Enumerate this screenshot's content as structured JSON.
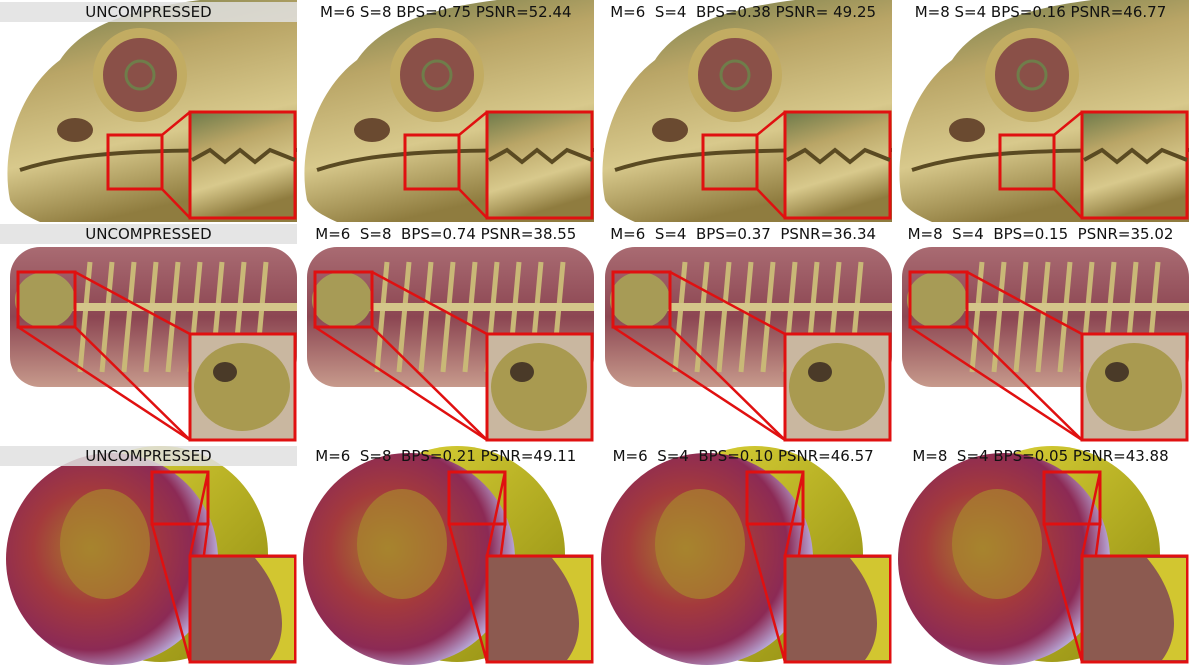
{
  "rows": [
    {
      "panels": [
        {
          "label": "UNCOMPRESSED"
        },
        {
          "label": "M=6 S=8 BPS=0.75 PSNR=52.44"
        },
        {
          "label": "M=6  S=4  BPS=0.38 PSNR= 49.25"
        },
        {
          "label": "M=8 S=4 BPS=0.16 PSNR=46.77"
        }
      ]
    },
    {
      "panels": [
        {
          "label": "UNCOMPRESSED"
        },
        {
          "label": "M=6  S=8  BPS=0.74 PSNR=38.55"
        },
        {
          "label": "M=6  S=4  BPS=0.37  PSNR=36.34"
        },
        {
          "label": "M=8  S=4  BPS=0.15  PSNR=35.02"
        }
      ]
    },
    {
      "panels": [
        {
          "label": "UNCOMPRESSED"
        },
        {
          "label": "M=6  S=8  BPS=0.21 PSNR=49.11"
        },
        {
          "label": "M=6  S=4  BPS=0.10 PSNR=46.57"
        },
        {
          "label": "M=8  S=4 BPS=0.05 PSNR=43.88"
        }
      ]
    }
  ]
}
